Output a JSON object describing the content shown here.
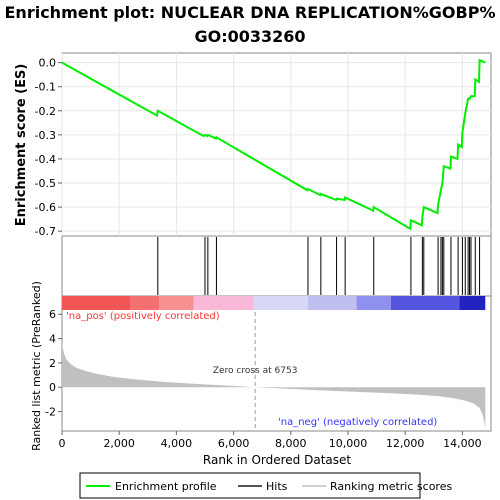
{
  "chart_data": {
    "type": "line",
    "title_line1": "Enrichment plot: NUCLEAR DNA REPLICATION%GOBP%",
    "title_line2": "GO:0033260",
    "x_label": "Rank in Ordered Dataset",
    "es_label": "Enrichment score (ES)",
    "metric_label": "Ranked list metric (PreRanked)",
    "x_range": [
      0,
      15000
    ],
    "x_ticks": [
      0,
      2000,
      4000,
      6000,
      8000,
      10000,
      12000,
      14000
    ],
    "x_tick_labels": [
      "0",
      "2,000",
      "4,000",
      "6,000",
      "8,000",
      "10,000",
      "12,000",
      "14,000"
    ],
    "es_range": [
      -0.72,
      0.04
    ],
    "es_ticks": [
      0.0,
      -0.1,
      -0.2,
      -0.3,
      -0.4,
      -0.5,
      -0.6,
      -0.7
    ],
    "es_tick_labels": [
      "0.0",
      "-0.1",
      "-0.2",
      "-0.3",
      "-0.4",
      "-0.5",
      "-0.6",
      "-0.7"
    ],
    "metric_range": [
      -3.6,
      7.5
    ],
    "metric_ticks": [
      6,
      4,
      2,
      0,
      -2
    ],
    "metric_tick_labels": [
      "6",
      "4",
      "2",
      "0",
      "-2"
    ],
    "n_genes": 14800,
    "zero_cross_rank": 6753,
    "zero_cross_label": "Zero cross at 6753",
    "na_pos_label": "'na_pos' (positively correlated)",
    "na_neg_label": "'na_neg' (negatively correlated)",
    "hits": [
      3350,
      5000,
      5100,
      5400,
      8600,
      9050,
      9600,
      9900,
      10900,
      12200,
      12600,
      12650,
      13150,
      13250,
      13300,
      13350,
      13600,
      13850,
      14000,
      14100,
      14200,
      14250,
      14300,
      14450,
      14600
    ],
    "es_points": [
      [
        0,
        0.0
      ],
      [
        3320,
        -0.22
      ],
      [
        3350,
        -0.2
      ],
      [
        4950,
        -0.305
      ],
      [
        5000,
        -0.3
      ],
      [
        5080,
        -0.305
      ],
      [
        5100,
        -0.3
      ],
      [
        5380,
        -0.315
      ],
      [
        5400,
        -0.31
      ],
      [
        8580,
        -0.53
      ],
      [
        8600,
        -0.525
      ],
      [
        9030,
        -0.55
      ],
      [
        9050,
        -0.545
      ],
      [
        9580,
        -0.57
      ],
      [
        9600,
        -0.565
      ],
      [
        9880,
        -0.57
      ],
      [
        9900,
        -0.56
      ],
      [
        10880,
        -0.615
      ],
      [
        10900,
        -0.6
      ],
      [
        12180,
        -0.69
      ],
      [
        12200,
        -0.655
      ],
      [
        12580,
        -0.675
      ],
      [
        12600,
        -0.64
      ],
      [
        12650,
        -0.6
      ],
      [
        13130,
        -0.625
      ],
      [
        13150,
        -0.59
      ],
      [
        13250,
        -0.53
      ],
      [
        13300,
        -0.5
      ],
      [
        13350,
        -0.43
      ],
      [
        13580,
        -0.44
      ],
      [
        13600,
        -0.39
      ],
      [
        13830,
        -0.4
      ],
      [
        13850,
        -0.34
      ],
      [
        13980,
        -0.35
      ],
      [
        14000,
        -0.29
      ],
      [
        14100,
        -0.21
      ],
      [
        14200,
        -0.15
      ],
      [
        14250,
        -0.15
      ],
      [
        14300,
        -0.14
      ],
      [
        14430,
        -0.14
      ],
      [
        14450,
        -0.07
      ],
      [
        14580,
        -0.08
      ],
      [
        14600,
        0.01
      ],
      [
        14800,
        0.0
      ]
    ],
    "metric_points": [
      [
        0,
        3.8
      ],
      [
        30,
        3.2
      ],
      [
        80,
        2.7
      ],
      [
        150,
        2.3
      ],
      [
        300,
        1.9
      ],
      [
        500,
        1.6
      ],
      [
        800,
        1.35
      ],
      [
        1200,
        1.1
      ],
      [
        1800,
        0.85
      ],
      [
        2500,
        0.65
      ],
      [
        3500,
        0.45
      ],
      [
        4500,
        0.3
      ],
      [
        5500,
        0.17
      ],
      [
        6200,
        0.08
      ],
      [
        6753,
        0.0
      ],
      [
        7500,
        -0.08
      ],
      [
        8500,
        -0.2
      ],
      [
        9500,
        -0.3
      ],
      [
        10500,
        -0.4
      ],
      [
        11500,
        -0.5
      ],
      [
        12500,
        -0.62
      ],
      [
        13200,
        -0.75
      ],
      [
        13700,
        -0.9
      ],
      [
        14100,
        -1.1
      ],
      [
        14400,
        -1.35
      ],
      [
        14600,
        -1.7
      ],
      [
        14700,
        -2.2
      ],
      [
        14760,
        -2.8
      ],
      [
        14800,
        -3.3
      ]
    ],
    "colors": {
      "es_line": "#00ee00",
      "hit": "#000000",
      "metric_fill": "#c0c0c0",
      "pos_label": "#ff3333",
      "neg_label": "#3333ff",
      "bar_segments": [
        "#f25555",
        "#f57070",
        "#f79090",
        "#fab8d8",
        "#d8d8f8",
        "#c0c0f0",
        "#9090ee",
        "#5555e0",
        "#2222c0"
      ]
    },
    "bar_breaks": [
      0,
      2400,
      3400,
      4600,
      6700,
      8600,
      10300,
      11500,
      13900,
      14800
    ],
    "legend": [
      {
        "name": "Enrichment profile",
        "kind": "line",
        "color": "#00ee00"
      },
      {
        "name": "Hits",
        "kind": "tick",
        "color": "#555555"
      },
      {
        "name": "Ranking metric scores",
        "kind": "line",
        "color": "#d0d0d0"
      }
    ]
  }
}
